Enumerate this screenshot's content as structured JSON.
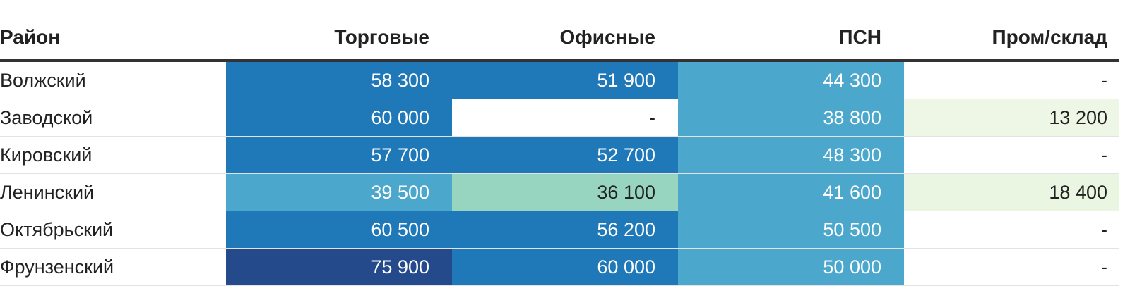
{
  "chart_data": {
    "type": "table",
    "columns": [
      "Район",
      "Торговые",
      "Офисные",
      "ПСН",
      "Пром/склад"
    ],
    "rows": [
      {
        "district": "Волжский",
        "cells": [
          "58 300",
          "51 900",
          "44 300",
          "-"
        ],
        "values": [
          58300,
          51900,
          44300,
          null
        ]
      },
      {
        "district": "Заводской",
        "cells": [
          "60 000",
          "-",
          "38 800",
          "13 200"
        ],
        "values": [
          60000,
          null,
          38800,
          13200
        ]
      },
      {
        "district": "Кировский",
        "cells": [
          "57 700",
          "52 700",
          "48 300",
          "-"
        ],
        "values": [
          57700,
          52700,
          48300,
          null
        ]
      },
      {
        "district": "Ленинский",
        "cells": [
          "39 500",
          "36 100",
          "41 600",
          "18 400"
        ],
        "values": [
          39500,
          36100,
          41600,
          18400
        ]
      },
      {
        "district": "Октябрьский",
        "cells": [
          "60 500",
          "56 200",
          "50 500",
          "-"
        ],
        "values": [
          60500,
          56200,
          50500,
          null
        ]
      },
      {
        "district": "Фрунзенский",
        "cells": [
          "75 900",
          "60 000",
          "50 000",
          "-"
        ],
        "values": [
          75900,
          60000,
          50000,
          null
        ]
      }
    ],
    "color_scale": {
      "empty": "#ffffff",
      "stops": [
        {
          "value": 0,
          "color": "#ffffff"
        },
        {
          "value": 13200,
          "color": "#eef7e6"
        },
        {
          "value": 18400,
          "color": "#eaf5e2"
        },
        {
          "value": 36100,
          "color": "#98d5c0"
        },
        {
          "value": 38800,
          "color": "#4ba7cb"
        },
        {
          "value": 50500,
          "color": "#4ba7cb"
        },
        {
          "value": 51900,
          "color": "#1f78b8"
        },
        {
          "value": 60500,
          "color": "#1f78b8"
        },
        {
          "value": 75900,
          "color": "#244a8c"
        }
      ],
      "dark_text": "#222222",
      "light_text": "#ffffff"
    }
  }
}
